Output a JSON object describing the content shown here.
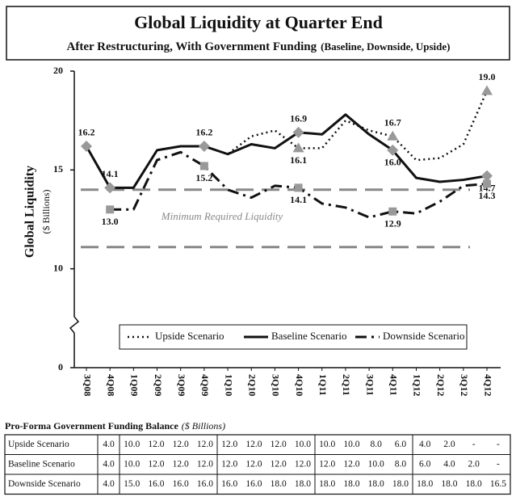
{
  "chart_data": {
    "type": "line",
    "title": "Global Liquidity at Quarter End",
    "subtitle": "After Restructuring, With Government Funding",
    "subtitle_note": "(Baseline, Downside, Upside)",
    "y_label": "Global Liquidity",
    "y_unit": "($ Billions)",
    "categories": [
      "3Q08",
      "4Q08",
      "1Q09",
      "2Q09",
      "3Q09",
      "4Q09",
      "1Q10",
      "2Q10",
      "3Q10",
      "4Q10",
      "1Q11",
      "2Q11",
      "3Q11",
      "4Q11",
      "1Q12",
      "2Q12",
      "3Q12",
      "4Q12"
    ],
    "series": [
      {
        "name": "Upside Scenario",
        "color": "#111111",
        "line_style": "dotted",
        "marker": "triangle",
        "marker_color": "#999999",
        "values": [
          16.2,
          14.1,
          14.1,
          16.0,
          16.2,
          16.2,
          15.8,
          16.7,
          17.0,
          16.1,
          16.1,
          17.5,
          17.0,
          16.7,
          15.5,
          15.6,
          16.3,
          19.0
        ],
        "value_labels": [
          null,
          null,
          null,
          null,
          null,
          null,
          null,
          null,
          null,
          "16.1",
          null,
          null,
          null,
          "16.7",
          null,
          null,
          null,
          "19.0"
        ]
      },
      {
        "name": "Baseline Scenario",
        "color": "#111111",
        "line_style": "solid",
        "marker": "diamond",
        "marker_color": "#999999",
        "values": [
          16.2,
          14.1,
          14.1,
          16.0,
          16.2,
          16.2,
          15.8,
          16.3,
          16.1,
          16.9,
          16.8,
          17.8,
          16.8,
          16.0,
          14.6,
          14.4,
          14.5,
          14.7
        ],
        "value_labels": [
          "16.2",
          "14.1",
          null,
          null,
          null,
          "16.2",
          null,
          null,
          null,
          "16.9",
          null,
          null,
          null,
          "16.0",
          null,
          null,
          null,
          "14.7"
        ]
      },
      {
        "name": "Downside Scenario",
        "color": "#111111",
        "line_style": "dash-dot",
        "marker": "square",
        "marker_color": "#999999",
        "values": [
          null,
          13.0,
          13.0,
          15.5,
          15.9,
          15.2,
          14.0,
          13.6,
          14.2,
          14.1,
          13.3,
          13.1,
          12.6,
          12.9,
          12.8,
          13.4,
          14.2,
          14.3
        ],
        "value_labels": [
          null,
          "13.0",
          null,
          null,
          null,
          "15.2",
          null,
          null,
          null,
          "14.1",
          null,
          null,
          null,
          "12.9",
          null,
          null,
          null,
          "14.3"
        ]
      }
    ],
    "reference_lines": [
      {
        "value": 14.0,
        "color": "#888888"
      },
      {
        "value": 11.1,
        "color": "#888888"
      }
    ],
    "reference_label": "Minimum Required Liquidity",
    "ylim": [
      0,
      20
    ],
    "yticks": [
      0,
      10,
      15,
      20
    ],
    "axis_break": true,
    "legend": "bottom"
  },
  "table": {
    "title": "Pro-Forma Government Funding Balance",
    "unit": "($ Billions)",
    "rows": [
      [
        "Upside Scenario",
        "4.0",
        "10.0",
        "12.0",
        "12.0",
        "12.0",
        "12.0",
        "12.0",
        "12.0",
        "10.0",
        "10.0",
        "10.0",
        "8.0",
        "6.0",
        "4.0",
        "2.0",
        "-",
        "-"
      ],
      [
        "Baseline Scenario",
        "4.0",
        "10.0",
        "12.0",
        "12.0",
        "12.0",
        "12.0",
        "12.0",
        "12.0",
        "12.0",
        "12.0",
        "12.0",
        "10.0",
        "8.0",
        "6.0",
        "4.0",
        "2.0",
        "-"
      ],
      [
        "Downside Scenario",
        "4.0",
        "15.0",
        "16.0",
        "16.0",
        "16.0",
        "16.0",
        "16.0",
        "18.0",
        "18.0",
        "18.0",
        "18.0",
        "18.0",
        "18.0",
        "18.0",
        "18.0",
        "18.0",
        "16.5"
      ]
    ]
  }
}
